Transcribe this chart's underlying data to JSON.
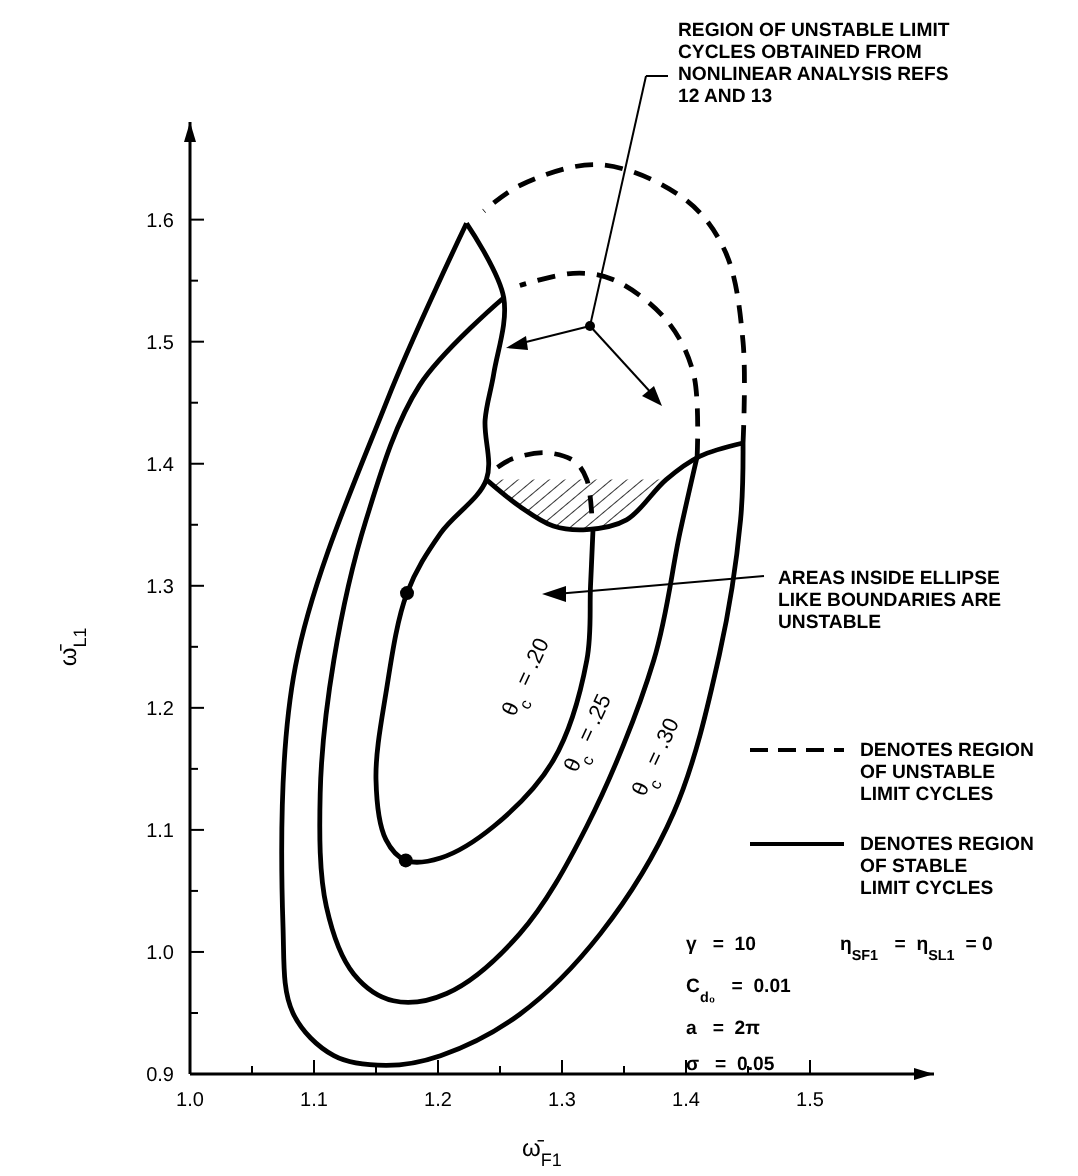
{
  "chart_data": {
    "type": "line",
    "xlabel": "ω̄$_{F1}$",
    "ylabel": "ω̄$_{L1}$",
    "xlim": [
      1.0,
      1.6
    ],
    "ylim": [
      0.9,
      1.68
    ],
    "xticks": [
      {
        "value": 1.0,
        "label": "1.0"
      },
      {
        "value": 1.05,
        "label": null
      },
      {
        "value": 1.1,
        "label": "1.1"
      },
      {
        "value": 1.15,
        "label": null
      },
      {
        "value": 1.2,
        "label": "1.2"
      },
      {
        "value": 1.25,
        "label": null
      },
      {
        "value": 1.3,
        "label": "1.3"
      },
      {
        "value": 1.35,
        "label": null
      },
      {
        "value": 1.4,
        "label": "1.4"
      },
      {
        "value": 1.45,
        "label": null
      },
      {
        "value": 1.5,
        "label": "1.5"
      }
    ],
    "yticks": [
      {
        "value": 0.9,
        "label": "0.9"
      },
      {
        "value": 0.95,
        "label": null
      },
      {
        "value": 1.0,
        "label": "1.0"
      },
      {
        "value": 1.05,
        "label": null
      },
      {
        "value": 1.1,
        "label": "1.1"
      },
      {
        "value": 1.15,
        "label": null
      },
      {
        "value": 1.2,
        "label": "1.2"
      },
      {
        "value": 1.25,
        "label": null
      },
      {
        "value": 1.3,
        "label": "1.3"
      },
      {
        "value": 1.35,
        "label": null
      },
      {
        "value": 1.4,
        "label": "1.4"
      },
      {
        "value": 1.45,
        "label": null
      },
      {
        "value": 1.5,
        "label": "1.5"
      },
      {
        "value": 1.55,
        "label": null
      },
      {
        "value": 1.6,
        "label": "1.6"
      }
    ],
    "series": [
      {
        "color": "#000000",
        "line_style": "solid",
        "x": [
          1.223,
          1.159,
          1.085,
          1.075,
          1.083,
          1.116,
          1.158,
          1.202,
          1.266,
          1.331,
          1.39,
          1.427,
          1.444,
          1.446
        ],
        "values": [
          1.597,
          1.452,
          1.234,
          1.021,
          0.95,
          0.915,
          0.907,
          0.915,
          0.949,
          1.015,
          1.114,
          1.244,
          1.354,
          1.417
        ]
      },
      {
        "color": "#000000",
        "line_style": "dashed",
        "x": [
          1.446,
          1.446,
          1.432,
          1.4,
          1.331,
          1.266,
          1.237
        ],
        "values": [
          1.417,
          1.5,
          1.573,
          1.616,
          1.645,
          1.628,
          1.607
        ]
      },
      {
        "color": "#000000",
        "line_style": "solid",
        "x": [
          1.253,
          1.185,
          1.142,
          1.116,
          1.105,
          1.11,
          1.132,
          1.164,
          1.207,
          1.266,
          1.32,
          1.374,
          1.395,
          1.409
        ],
        "values": [
          1.536,
          1.464,
          1.354,
          1.239,
          1.13,
          1.037,
          0.982,
          0.96,
          0.966,
          1.015,
          1.103,
          1.239,
          1.343,
          1.406
        ]
      },
      {
        "color": "#000000",
        "line_style": "dashed",
        "x": [
          1.409,
          1.406,
          1.384,
          1.341,
          1.309,
          1.266
        ],
        "values": [
          1.406,
          1.474,
          1.518,
          1.551,
          1.556,
          1.546
        ]
      },
      {
        "color": "#000000",
        "line_style": "solid",
        "x": [
          1.223,
          1.253,
          1.245,
          1.238,
          1.239,
          1.202,
          1.175,
          1.158,
          1.15,
          1.158,
          1.174,
          1.202,
          1.245,
          1.293,
          1.32,
          1.323,
          1.325
        ],
        "values": [
          1.597,
          1.536,
          1.474,
          1.436,
          1.387,
          1.343,
          1.294,
          1.212,
          1.141,
          1.092,
          1.075,
          1.077,
          1.103,
          1.157,
          1.239,
          1.3,
          1.346
        ]
      },
      {
        "color": "#000000",
        "line_style": "dashed",
        "x": [
          1.248,
          1.26,
          1.287,
          1.31,
          1.32,
          1.324
        ],
        "values": [
          1.397,
          1.404,
          1.409,
          1.402,
          1.387,
          1.358
        ]
      },
      {
        "color": "#000000",
        "line_style": "solid",
        "x": [
          1.239,
          1.266,
          1.293,
          1.32,
          1.352,
          1.384,
          1.411,
          1.446
        ],
        "values": [
          1.387,
          1.365,
          1.349,
          1.346,
          1.354,
          1.387,
          1.406,
          1.417
        ]
      },
      {
        "type": "scatter",
        "color": "#000000",
        "marker": "circle",
        "x": [
          1.175,
          1.174
        ],
        "values": [
          1.294,
          1.075
        ]
      }
    ],
    "annotations": [
      "REGION OF UNSTABLE LIMIT CYCLES OBTAINED FROM NONLINEAR ANALYSIS REFS 12 AND 13",
      "AREAS INSIDE ELLIPSE LIKE BOUNDARIES ARE UNSTABLE",
      "DENOTES REGION OF UNSTABLE LIMIT CYCLES",
      "DENOTES REGION OF STABLE LIMIT CYCLES",
      "γ   =  10",
      "η$_{SF1}$  =  η$_{SL1}$ = 0",
      "C$_{d₀}$  =  0.01",
      "a   =  2π",
      "σ   =  0.05",
      "θ$_{c}$ = .20",
      "θ$_{c}$ = .25",
      "θ$_{c}$ = .30"
    ]
  }
}
